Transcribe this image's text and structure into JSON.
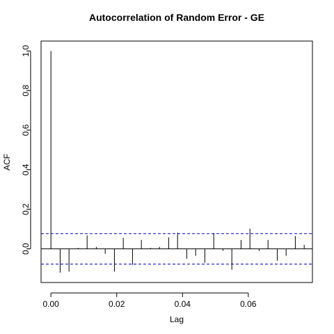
{
  "chart_data": {
    "type": "bar",
    "title": "Autocorrelation of Random Error - GE",
    "xlabel": "Lag",
    "ylabel": "ACF",
    "xlim": [
      -0.003,
      0.0795
    ],
    "ylim": [
      -0.17,
      1.05
    ],
    "x_ticks": [
      "0.00",
      "0.02",
      "0.04",
      "0.06"
    ],
    "x_tick_values": [
      0.0,
      0.02,
      0.04,
      0.06
    ],
    "y_ticks": [
      "0.0",
      "0.2",
      "0.4",
      "0.6",
      "0.8",
      "1.0"
    ],
    "y_tick_values": [
      0.0,
      0.2,
      0.4,
      0.6,
      0.8,
      1.0
    ],
    "confidence_band": 0.077,
    "lags": [
      0.0,
      0.0028,
      0.0055,
      0.0083,
      0.011,
      0.0138,
      0.0165,
      0.0193,
      0.022,
      0.0248,
      0.0275,
      0.0303,
      0.033,
      0.0358,
      0.0385,
      0.0413,
      0.044,
      0.0468,
      0.0495,
      0.0523,
      0.055,
      0.0578,
      0.0605,
      0.0633,
      0.066,
      0.0688,
      0.0715,
      0.0743,
      0.077
    ],
    "values": [
      1.0,
      -0.12,
      -0.115,
      0.005,
      0.068,
      0.01,
      -0.025,
      -0.115,
      0.055,
      -0.08,
      0.045,
      0.005,
      0.01,
      0.058,
      0.082,
      -0.05,
      -0.035,
      -0.07,
      0.08,
      -0.01,
      -0.105,
      0.045,
      0.102,
      -0.01,
      0.045,
      -0.06,
      -0.035,
      0.065,
      0.02
    ],
    "colors": {
      "bars": "#000000",
      "band": "#0000cc",
      "zero_line": "#000000"
    }
  }
}
